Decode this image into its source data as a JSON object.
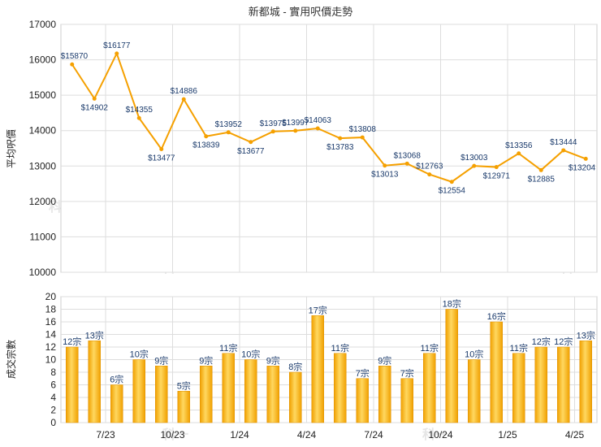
{
  "chart_data": [
    {
      "type": "line",
      "title": "新都城 - 實用呎價走勢",
      "ylabel": "平均呎價",
      "ylim": [
        10000,
        17000
      ],
      "yticks": [
        10000,
        11000,
        12000,
        13000,
        14000,
        15000,
        16000,
        17000
      ],
      "grid": true,
      "color": "#f5a000",
      "values": [
        15870,
        14902,
        16177,
        14355,
        13477,
        14886,
        13839,
        13952,
        13677,
        13975,
        13997,
        14063,
        13783,
        13808,
        13013,
        13068,
        12763,
        12554,
        13003,
        12971,
        13356,
        12885,
        13444,
        13204
      ],
      "labels": [
        "$15870",
        "$14902",
        "$16177",
        "$14355",
        "$13477",
        "$14886",
        "$13839",
        "$13952",
        "$13677",
        "$13975",
        "$13997",
        "$14063",
        "$13783",
        "$13808",
        "$13013",
        "$13068",
        "$12763",
        "$12554",
        "$13003",
        "$12971",
        "$13356",
        "$12885",
        "$13444",
        "$13204"
      ]
    },
    {
      "type": "bar",
      "ylabel": "成交宗數",
      "ylim": [
        0,
        20
      ],
      "yticks": [
        0,
        2,
        4,
        6,
        8,
        10,
        12,
        14,
        16,
        18,
        20
      ],
      "grid": true,
      "color": "#f5a800",
      "values": [
        12,
        13,
        6,
        10,
        9,
        5,
        9,
        11,
        10,
        9,
        8,
        17,
        11,
        7,
        9,
        7,
        11,
        18,
        10,
        16,
        11,
        12,
        12,
        13
      ],
      "labels": [
        "12宗",
        "13宗",
        "6宗",
        "10宗",
        "9宗",
        "5宗",
        "9宗",
        "11宗",
        "10宗",
        "9宗",
        "8宗",
        "17宗",
        "11宗",
        "7宗",
        "9宗",
        "7宗",
        "11宗",
        "18宗",
        "10宗",
        "16宗",
        "11宗",
        "12宗",
        "12宗",
        "13宗"
      ]
    }
  ],
  "x_axis": {
    "tick_labels": [
      "7/23",
      "10/23",
      "1/24",
      "4/24",
      "7/24",
      "10/24",
      "1/25",
      "4/25"
    ],
    "tick_months": [
      2,
      5,
      8,
      11,
      14,
      17,
      20,
      23
    ]
  },
  "watermark_text": "科一"
}
